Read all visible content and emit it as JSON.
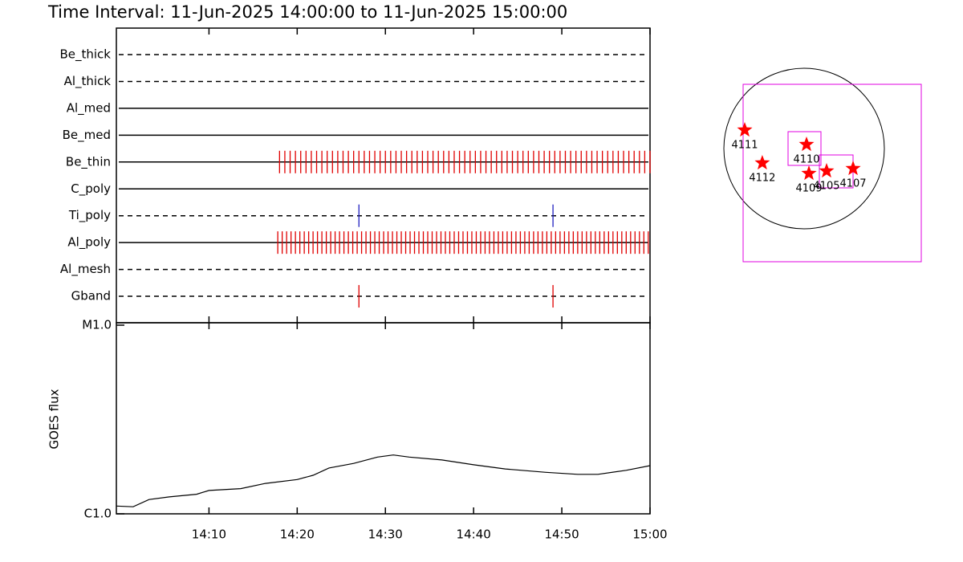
{
  "chart_data": [
    {
      "type": "timeline",
      "title": "Time Interval: 11-Jun-2025 14:00:00 to 11-Jun-2025 15:00:00",
      "xlim": [
        -0.5,
        60
      ],
      "rows": [
        {
          "name": "Be_thick",
          "style": "dashed",
          "events": []
        },
        {
          "name": "Al_thick",
          "style": "dashed",
          "events": []
        },
        {
          "name": "Al_med",
          "style": "solid",
          "events": []
        },
        {
          "name": "Be_med",
          "style": "solid",
          "events": []
        },
        {
          "name": "Be_thin",
          "style": "solid",
          "color": "#e00000",
          "events": [
            18.0,
            18.6,
            19.2,
            19.8,
            20.4,
            21.0,
            21.6,
            22.2,
            22.8,
            23.4,
            24.0,
            24.6,
            25.2,
            25.8,
            26.4,
            27.0,
            27.6,
            28.2,
            28.8,
            29.4,
            30.0,
            30.6,
            31.2,
            31.8,
            32.4,
            33.0,
            33.6,
            34.2,
            34.8,
            35.4,
            36.0,
            36.6,
            37.2,
            37.8,
            38.4,
            39.0,
            39.6,
            40.2,
            40.8,
            41.4,
            42.0,
            42.6,
            43.2,
            43.8,
            44.4,
            45.0,
            45.6,
            46.2,
            46.8,
            47.4,
            48.0,
            48.6,
            49.2,
            49.8,
            50.4,
            51.0,
            51.6,
            52.2,
            52.8,
            53.4,
            54.0,
            54.6,
            55.2,
            55.8,
            56.4,
            57.0,
            57.6,
            58.2,
            58.8,
            59.4,
            60.0
          ]
        },
        {
          "name": "C_poly",
          "style": "solid",
          "events": []
        },
        {
          "name": "Ti_poly",
          "style": "dashed",
          "color": "#2020c0",
          "events": [
            27.0,
            49.0
          ]
        },
        {
          "name": "Al_poly",
          "style": "solid",
          "color": "#e00000",
          "events": [
            17.8,
            18.3,
            18.8,
            19.3,
            19.8,
            20.3,
            20.8,
            21.3,
            21.8,
            22.3,
            22.8,
            23.3,
            23.8,
            24.3,
            24.8,
            25.3,
            25.8,
            26.3,
            26.8,
            27.3,
            27.8,
            28.3,
            28.8,
            29.3,
            29.8,
            30.3,
            30.8,
            31.3,
            31.8,
            32.3,
            32.8,
            33.3,
            33.8,
            34.3,
            34.8,
            35.3,
            35.8,
            36.3,
            36.8,
            37.3,
            37.8,
            38.3,
            38.8,
            39.3,
            39.8,
            40.3,
            40.8,
            41.3,
            41.8,
            42.3,
            42.8,
            43.3,
            43.8,
            44.3,
            44.8,
            45.3,
            45.8,
            46.3,
            46.8,
            47.3,
            47.8,
            48.3,
            48.8,
            49.3,
            49.8,
            50.3,
            50.8,
            51.3,
            51.8,
            52.3,
            52.8,
            53.3,
            53.8,
            54.3,
            54.8,
            55.3,
            55.8,
            56.3,
            56.8,
            57.3,
            57.8,
            58.3,
            58.8,
            59.3,
            59.8
          ]
        },
        {
          "name": "Al_mesh",
          "style": "dashed",
          "events": []
        },
        {
          "name": "Gband",
          "style": "dashed",
          "color": "#e00000",
          "events": [
            27.0,
            49.0
          ]
        }
      ]
    },
    {
      "type": "line",
      "ylabel": "GOES flux",
      "log_scale": true,
      "color": "#000000",
      "xlim": [
        -0.5,
        60
      ],
      "xticks": [
        {
          "value": 10,
          "label": "14:10"
        },
        {
          "value": 20,
          "label": "14:20"
        },
        {
          "value": 30,
          "label": "14:30"
        },
        {
          "value": 40,
          "label": "14:40"
        },
        {
          "value": 50,
          "label": "14:50"
        },
        {
          "value": 60,
          "label": "15:00"
        }
      ],
      "ylim": [
        1e-06,
        1e-05
      ],
      "yticks": [
        {
          "value": 1e-06,
          "label": "C1.0"
        },
        {
          "value": 1e-05,
          "label": "M1.0"
        }
      ],
      "x": [
        -0.5,
        1.4,
        3.2,
        5.5,
        8.6,
        10,
        13.6,
        16.4,
        20,
        21.8,
        23.6,
        26.4,
        29.1,
        30.9,
        32.7,
        36.4,
        40,
        43.6,
        48.2,
        51.8,
        54.1,
        57.3,
        60
      ],
      "values": [
        1.1e-06,
        1.09e-06,
        1.19e-06,
        1.23e-06,
        1.27e-06,
        1.33e-06,
        1.36e-06,
        1.45e-06,
        1.52e-06,
        1.6e-06,
        1.75e-06,
        1.85e-06,
        2e-06,
        2.05e-06,
        2e-06,
        1.93e-06,
        1.82e-06,
        1.73e-06,
        1.66e-06,
        1.62e-06,
        1.62e-06,
        1.7e-06,
        1.8e-06
      ]
    },
    {
      "type": "map",
      "color": "#ff0000",
      "regions": [
        {
          "label": "4111",
          "x": -710,
          "y": 221
        },
        {
          "label": "4112",
          "x": -500,
          "y": -173
        },
        {
          "label": "4110",
          "x": 29,
          "y": 48
        },
        {
          "label": "4109",
          "x": 58,
          "y": -298
        },
        {
          "label": "4105",
          "x": 269,
          "y": -269
        },
        {
          "label": "4107",
          "x": 586,
          "y": -240
        }
      ]
    }
  ]
}
